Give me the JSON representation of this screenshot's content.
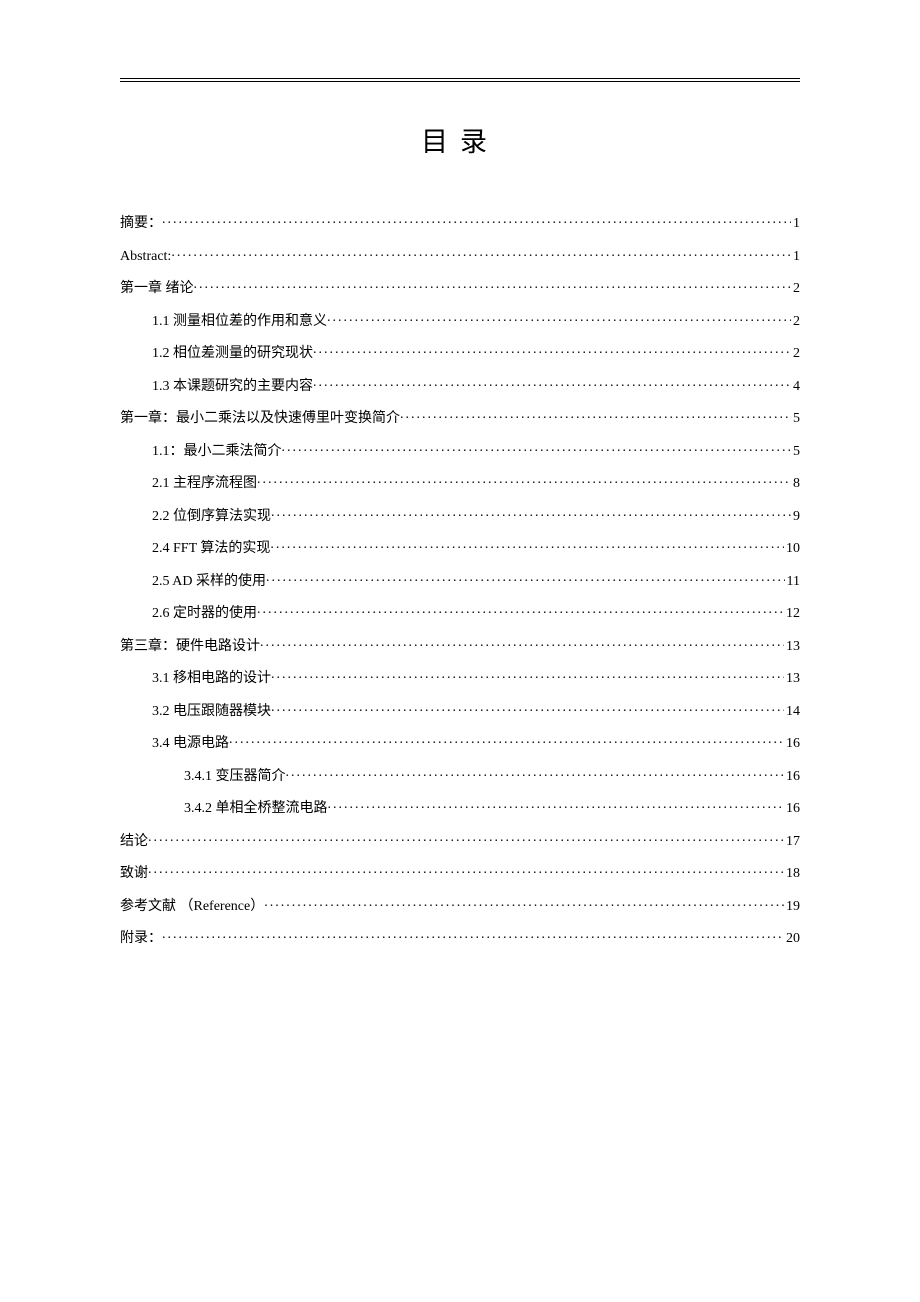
{
  "title": "目录",
  "entries": [
    {
      "level": 1,
      "label": "摘要：",
      "page": "1"
    },
    {
      "level": 1,
      "label": "Abstract:",
      "page": "1"
    },
    {
      "level": 1,
      "label": "第一章  绪论",
      "page": "2"
    },
    {
      "level": 2,
      "label": "1.1 测量相位差的作用和意义",
      "page": "2"
    },
    {
      "level": 2,
      "label": "1.2 相位差测量的研究现状",
      "page": "2"
    },
    {
      "level": 2,
      "label": "1.3 本课题研究的主要内容",
      "page": "4"
    },
    {
      "level": 1,
      "label": "第一章：最小二乘法以及快速傅里叶变换简介",
      "page": "5"
    },
    {
      "level": 2,
      "label": "1.1：最小二乘法简介",
      "page": "5"
    },
    {
      "level": 2,
      "label": "2.1 主程序流程图",
      "page": "8"
    },
    {
      "level": 2,
      "label": "2.2 位倒序算法实现",
      "page": "9"
    },
    {
      "level": 2,
      "label": "2.4   FFT 算法的实现",
      "page": "10"
    },
    {
      "level": 2,
      "label": "2.5 AD 采样的使用",
      "page": "11"
    },
    {
      "level": 2,
      "label": "2.6 定时器的使用",
      "page": "12"
    },
    {
      "level": 1,
      "label": "第三章：硬件电路设计",
      "page": "13"
    },
    {
      "level": 2,
      "label": "3.1 移相电路的设计",
      "page": "13"
    },
    {
      "level": 2,
      "label": "3.2 电压跟随器模块",
      "page": "14"
    },
    {
      "level": 2,
      "label": "3.4 电源电路",
      "page": "16"
    },
    {
      "level": 3,
      "label": "3.4.1 变压器简介",
      "page": "16"
    },
    {
      "level": 3,
      "label": "3.4.2 单相全桥整流电路",
      "page": "16"
    },
    {
      "level": 1,
      "label": "结论",
      "page": "17"
    },
    {
      "level": 1,
      "label": "致谢",
      "page": "18"
    },
    {
      "level": 1,
      "label": "参考文献 （Reference）",
      "page": "19"
    },
    {
      "level": 1,
      "label": "附录：",
      "page": "20"
    }
  ]
}
